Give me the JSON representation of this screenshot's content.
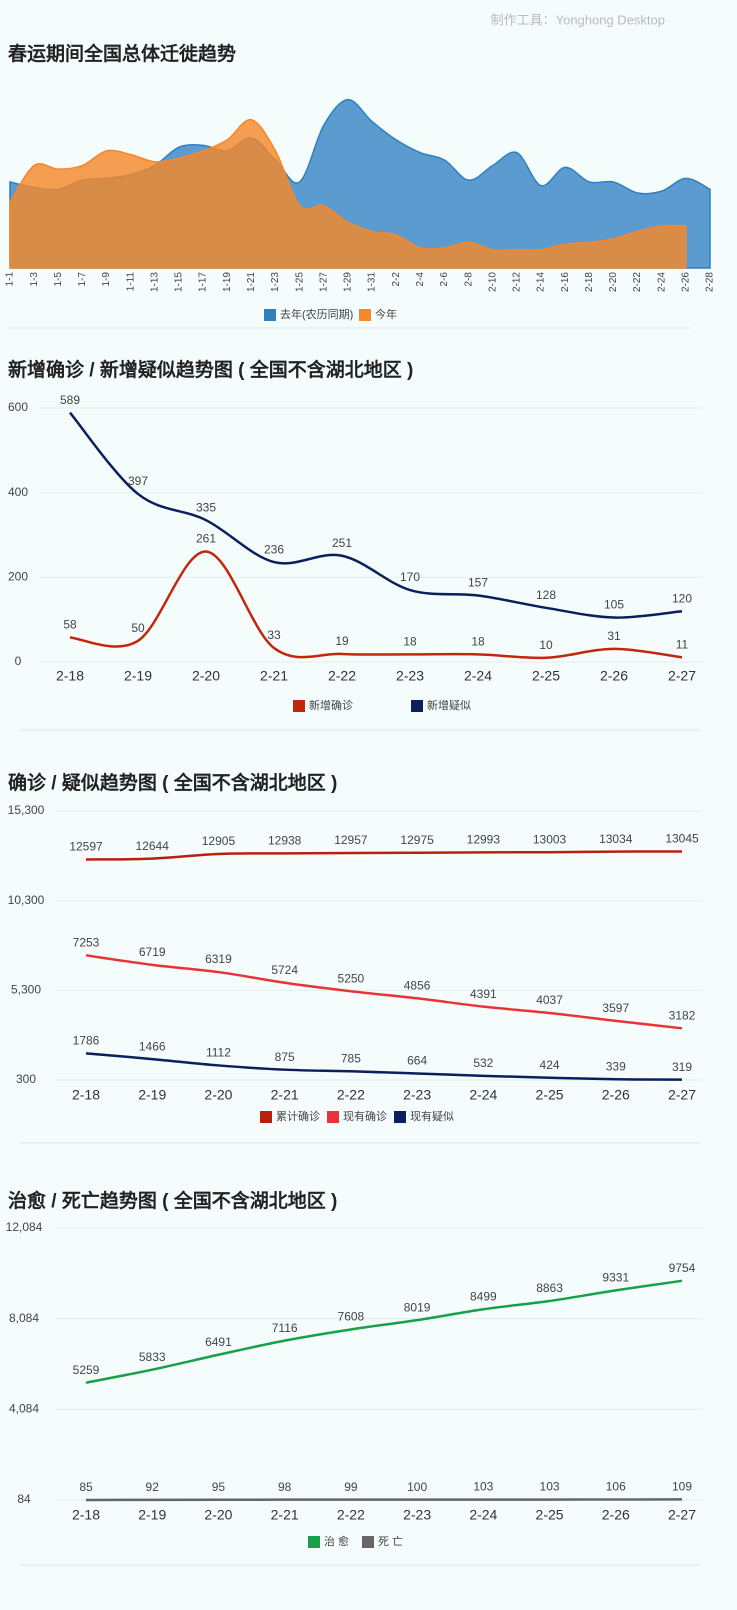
{
  "watermark": "制作工具：Yonghong Desktop",
  "chart_data": [
    {
      "type": "area",
      "title": "春运期间全国总体迁徙趋势",
      "categories": [
        "1-1",
        "1-3",
        "1-5",
        "1-7",
        "1-9",
        "1-11",
        "1-13",
        "1-15",
        "1-17",
        "1-19",
        "1-21",
        "1-23",
        "1-25",
        "1-27",
        "1-29",
        "1-31",
        "2-2",
        "2-4",
        "2-6",
        "2-8",
        "2-10",
        "2-12",
        "2-14",
        "2-16",
        "2-18",
        "2-20",
        "2-22",
        "2-24",
        "2-26",
        "2-28"
      ],
      "ylim": [
        0,
        100
      ],
      "series": [
        {
          "name": "去年(农历同期)",
          "color": "#2f7fc1",
          "values": [
            47,
            44,
            43,
            48,
            49,
            51,
            56,
            66,
            67,
            64,
            71,
            59,
            47,
            78,
            92,
            80,
            70,
            63,
            59,
            48,
            56,
            63,
            45,
            55,
            47,
            47,
            41,
            42,
            49,
            43
          ]
        },
        {
          "name": "今年",
          "color": "#f5882a",
          "values": [
            36,
            56,
            54,
            56,
            64,
            62,
            58,
            60,
            64,
            70,
            81,
            64,
            34,
            34,
            25,
            20,
            18,
            11,
            11,
            14,
            10,
            10,
            10,
            13,
            14,
            16,
            20,
            23,
            23,
            null
          ]
        }
      ]
    },
    {
      "type": "line",
      "title": "新增确诊 / 新增疑似趋势图 ( 全国不含湖北地区 )",
      "categories": [
        "2-18",
        "2-19",
        "2-20",
        "2-21",
        "2-22",
        "2-23",
        "2-24",
        "2-25",
        "2-26",
        "2-27"
      ],
      "ylim": [
        0,
        600
      ],
      "yticks": [
        0,
        200,
        400,
        600
      ],
      "grid": true,
      "series": [
        {
          "name": "新增确诊",
          "color": "#c4260c",
          "values": [
            58,
            50,
            261,
            33,
            19,
            18,
            18,
            10,
            31,
            11
          ]
        },
        {
          "name": "新增疑似",
          "color": "#0b1f5e",
          "values": [
            589,
            397,
            335,
            236,
            251,
            170,
            157,
            128,
            105,
            120
          ]
        }
      ]
    },
    {
      "type": "line",
      "title": "确诊 / 疑似趋势图 ( 全国不含湖北地区 )",
      "categories": [
        "2-18",
        "2-19",
        "2-20",
        "2-21",
        "2-22",
        "2-23",
        "2-24",
        "2-25",
        "2-26",
        "2-27"
      ],
      "ylim": [
        300,
        15300
      ],
      "yticks": [
        {
          "value": 300,
          "label": "300"
        },
        {
          "value": 5300,
          "label": "5,300"
        },
        {
          "value": 10300,
          "label": "10,300"
        },
        {
          "value": 15300,
          "label": "15,300"
        }
      ],
      "grid": true,
      "series": [
        {
          "name": "累计确诊",
          "color": "#b8200c",
          "values": [
            12597,
            12644,
            12905,
            12938,
            12957,
            12975,
            12993,
            13003,
            13034,
            13045
          ]
        },
        {
          "name": "现有确诊",
          "color": "#ea3338",
          "values": [
            7253,
            6719,
            6319,
            5724,
            5250,
            4856,
            4391,
            4037,
            3597,
            3182
          ]
        },
        {
          "name": "现有疑似",
          "color": "#0b1f5e",
          "values": [
            1786,
            1466,
            1112,
            875,
            785,
            664,
            532,
            424,
            339,
            319
          ]
        }
      ]
    },
    {
      "type": "line",
      "title": "治愈 / 死亡趋势图 ( 全国不含湖北地区 )",
      "categories": [
        "2-18",
        "2-19",
        "2-20",
        "2-21",
        "2-22",
        "2-23",
        "2-24",
        "2-25",
        "2-26",
        "2-27"
      ],
      "ylim": [
        84,
        12084
      ],
      "yticks": [
        {
          "value": 84,
          "label": "84"
        },
        {
          "value": 4084,
          "label": "4,084"
        },
        {
          "value": 8084,
          "label": "8,084"
        },
        {
          "value": 12084,
          "label": "12,084"
        }
      ],
      "grid": true,
      "series": [
        {
          "name": "治 愈",
          "color": "#16a049",
          "values": [
            5259,
            5833,
            6491,
            7116,
            7608,
            8019,
            8499,
            8863,
            9331,
            9754
          ]
        },
        {
          "name": "死 亡",
          "color": "#666666",
          "values": [
            85,
            92,
            95,
            98,
            99,
            100,
            103,
            103,
            106,
            109
          ]
        }
      ]
    }
  ]
}
